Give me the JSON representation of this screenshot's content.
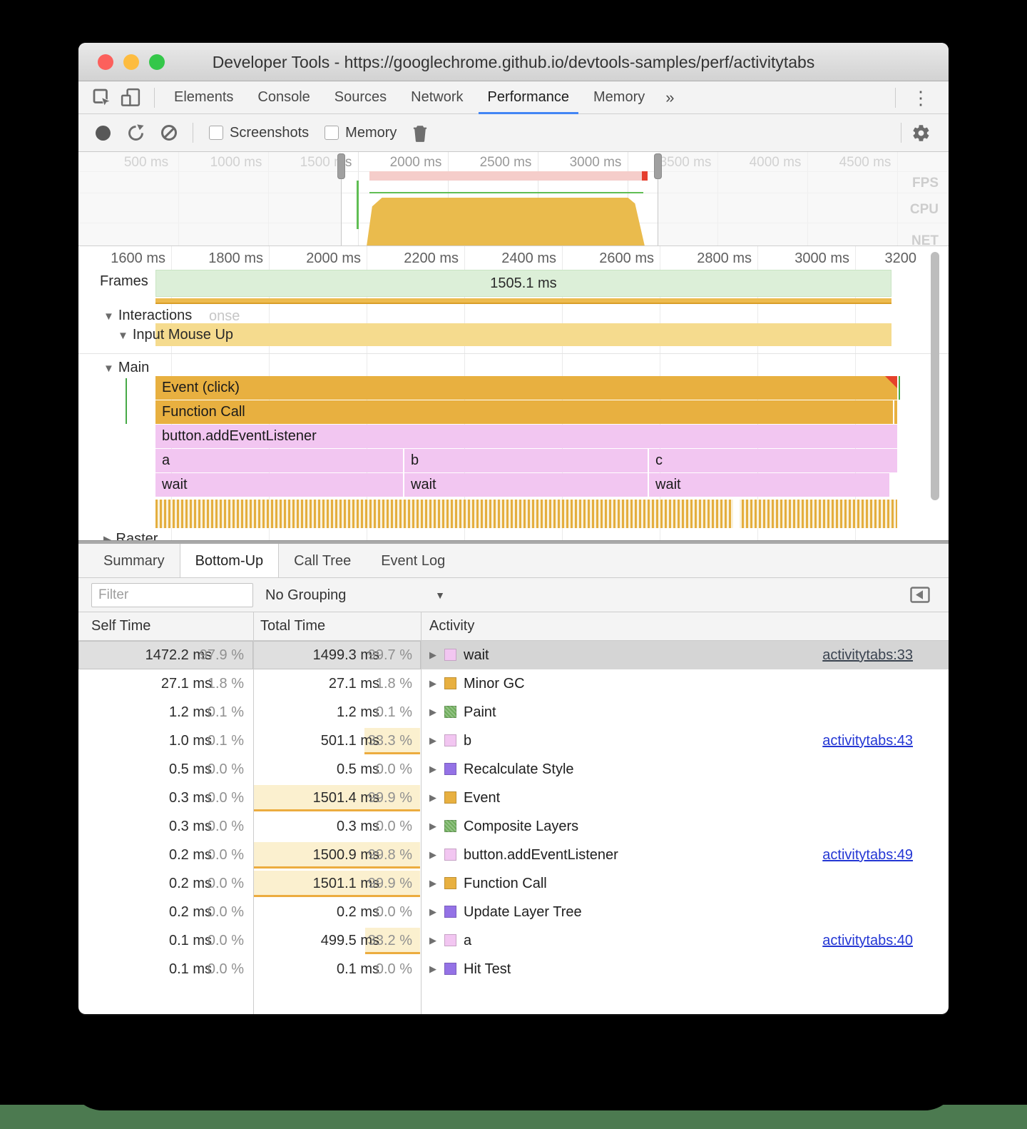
{
  "titlebar": {
    "title": "Developer Tools - https://googlechrome.github.io/devtools-samples/perf/activitytabs"
  },
  "tabbar": {
    "tabs": [
      "Elements",
      "Console",
      "Sources",
      "Network",
      "Performance",
      "Memory"
    ],
    "active_tab": "Performance",
    "overflow_glyph": "»",
    "menu_glyph": "⋮"
  },
  "toolbar": {
    "screenshots_label": "Screenshots",
    "memory_label": "Memory",
    "screenshots_checked": false,
    "memory_checked": false
  },
  "overview": {
    "time_labels": [
      "500 ms",
      "1000 ms",
      "1500 ms",
      "2000 ms",
      "2500 ms",
      "3000 ms",
      "3500 ms",
      "4000 ms",
      "4500 ms"
    ],
    "lanes": [
      "FPS",
      "CPU",
      "NET"
    ]
  },
  "flame": {
    "ruler_labels": [
      "1600 ms",
      "1800 ms",
      "2000 ms",
      "2200 ms",
      "2400 ms",
      "2600 ms",
      "2800 ms",
      "3000 ms",
      "3200"
    ],
    "frames": {
      "label": "Frames",
      "duration": "1505.1 ms"
    },
    "interactions": {
      "label": "Interactions",
      "ghost": "onse",
      "input_label": "Input Mouse Up"
    },
    "main": {
      "label": "Main",
      "raster_label": "Raster",
      "bars": {
        "event": "Event (click)",
        "function_call": "Function Call",
        "listener": "button.addEventListener",
        "a": "a",
        "b": "b",
        "c": "c",
        "wait": "wait"
      }
    }
  },
  "bottom_pane": {
    "tabs": [
      "Summary",
      "Bottom-Up",
      "Call Tree",
      "Event Log"
    ],
    "active_tab": "Bottom-Up",
    "filter_placeholder": "Filter",
    "grouping": "No Grouping",
    "table": {
      "columns": [
        "Self Time",
        "Total Time",
        "Activity"
      ],
      "rows": [
        {
          "self_ms": "1472.2 ms",
          "self_pct": "97.9 %",
          "total_ms": "1499.3 ms",
          "total_pct": "99.7 %",
          "activity": "wait",
          "swatch": "pink",
          "link": "activitytabs:33",
          "selected": true
        },
        {
          "self_ms": "27.1 ms",
          "self_pct": "1.8 %",
          "total_ms": "27.1 ms",
          "total_pct": "1.8 %",
          "activity": "Minor GC",
          "swatch": "orange"
        },
        {
          "self_ms": "1.2 ms",
          "self_pct": "0.1 %",
          "total_ms": "1.2 ms",
          "total_pct": "0.1 %",
          "activity": "Paint",
          "swatch": "green"
        },
        {
          "self_ms": "1.0 ms",
          "self_pct": "0.1 %",
          "total_ms": "501.1 ms",
          "total_pct": "33.3 %",
          "activity": "b",
          "swatch": "pink",
          "link": "activitytabs:43",
          "hl": 33.3
        },
        {
          "self_ms": "0.5 ms",
          "self_pct": "0.0 %",
          "total_ms": "0.5 ms",
          "total_pct": "0.0 %",
          "activity": "Recalculate Style",
          "swatch": "purple"
        },
        {
          "self_ms": "0.3 ms",
          "self_pct": "0.0 %",
          "total_ms": "1501.4 ms",
          "total_pct": "99.9 %",
          "activity": "Event",
          "swatch": "orange",
          "hl": 99.9
        },
        {
          "self_ms": "0.3 ms",
          "self_pct": "0.0 %",
          "total_ms": "0.3 ms",
          "total_pct": "0.0 %",
          "activity": "Composite Layers",
          "swatch": "green"
        },
        {
          "self_ms": "0.2 ms",
          "self_pct": "0.0 %",
          "total_ms": "1500.9 ms",
          "total_pct": "99.8 %",
          "activity": "button.addEventListener",
          "swatch": "pink",
          "link": "activitytabs:49",
          "hl": 99.8
        },
        {
          "self_ms": "0.2 ms",
          "self_pct": "0.0 %",
          "total_ms": "1501.1 ms",
          "total_pct": "99.9 %",
          "activity": "Function Call",
          "swatch": "orange",
          "hl": 99.9
        },
        {
          "self_ms": "0.2 ms",
          "self_pct": "0.0 %",
          "total_ms": "0.2 ms",
          "total_pct": "0.0 %",
          "activity": "Update Layer Tree",
          "swatch": "purple"
        },
        {
          "self_ms": "0.1 ms",
          "self_pct": "0.0 %",
          "total_ms": "499.5 ms",
          "total_pct": "33.2 %",
          "activity": "a",
          "swatch": "pink",
          "link": "activitytabs:40",
          "hl": 33.2
        },
        {
          "self_ms": "0.1 ms",
          "self_pct": "0.0 %",
          "total_ms": "0.1 ms",
          "total_pct": "0.0 %",
          "activity": "Hit Test",
          "swatch": "purple"
        }
      ]
    }
  },
  "colors": {
    "accent_blue": "#4285F4",
    "scripting_yellow": "#E8B040",
    "interaction_yellow": "#F5DB8E",
    "pink": "#F2C6F1",
    "frames_green": "#DCEFD8",
    "swatch_green": "#6FAE5C",
    "swatch_purple": "#9472E6",
    "link_blue": "#2336D4",
    "highlight_bg": "#FBF0CF",
    "highlight_border": "#ECAC3F",
    "selected_row": "#D5D5D5",
    "long_task_pink": "#F5CDCA",
    "long_task_red": "#E53E2E",
    "fps_green": "#60BE54"
  }
}
